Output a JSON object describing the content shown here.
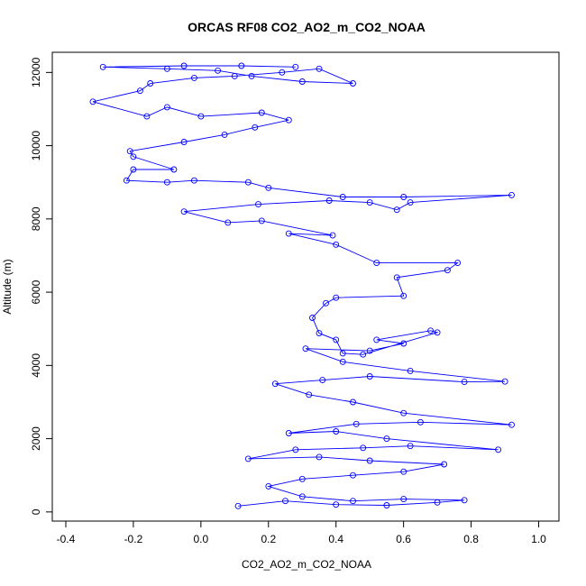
{
  "chart_data": {
    "type": "line",
    "title": "ORCAS RF08 CO2_AO2_m_CO2_NOAA",
    "xlabel": "CO2_AO2_m_CO2_NOAA",
    "ylabel": "Altitude (m)",
    "xlim": [
      -0.44,
      1.06
    ],
    "ylim": [
      -250,
      12550
    ],
    "x_ticks": [
      "-0.4",
      "-0.2",
      "0.0",
      "0.2",
      "0.4",
      "0.6",
      "0.8",
      "1.0"
    ],
    "y_ticks": [
      "0",
      "2000",
      "4000",
      "6000",
      "8000",
      "10000",
      "12000"
    ],
    "grid": false,
    "colors": {
      "series": "#0000ff",
      "axes": "#000000"
    },
    "series": [
      {
        "points": [
          [
            0.11,
            160
          ],
          [
            0.25,
            300
          ],
          [
            0.4,
            200
          ],
          [
            0.55,
            180
          ],
          [
            0.7,
            260
          ],
          [
            0.78,
            320
          ],
          [
            0.6,
            350
          ],
          [
            0.45,
            300
          ],
          [
            0.3,
            420
          ],
          [
            0.2,
            700
          ],
          [
            0.3,
            900
          ],
          [
            0.45,
            1000
          ],
          [
            0.6,
            1100
          ],
          [
            0.72,
            1300
          ],
          [
            0.5,
            1400
          ],
          [
            0.35,
            1500
          ],
          [
            0.14,
            1450
          ],
          [
            0.28,
            1700
          ],
          [
            0.48,
            1750
          ],
          [
            0.62,
            1800
          ],
          [
            0.88,
            1700
          ],
          [
            0.55,
            2000
          ],
          [
            0.4,
            2200
          ],
          [
            0.26,
            2150
          ],
          [
            0.46,
            2400
          ],
          [
            0.65,
            2450
          ],
          [
            0.92,
            2380
          ],
          [
            0.6,
            2700
          ],
          [
            0.45,
            3000
          ],
          [
            0.32,
            3200
          ],
          [
            0.22,
            3500
          ],
          [
            0.36,
            3600
          ],
          [
            0.5,
            3700
          ],
          [
            0.78,
            3550
          ],
          [
            0.9,
            3560
          ],
          [
            0.62,
            3850
          ],
          [
            0.42,
            4100
          ],
          [
            0.31,
            4460
          ],
          [
            0.5,
            4400
          ],
          [
            0.6,
            4600
          ],
          [
            0.52,
            4700
          ],
          [
            0.68,
            4950
          ],
          [
            0.7,
            4900
          ],
          [
            0.48,
            4300
          ],
          [
            0.42,
            4330
          ],
          [
            0.4,
            4700
          ],
          [
            0.35,
            4880
          ],
          [
            0.33,
            5300
          ],
          [
            0.37,
            5700
          ],
          [
            0.4,
            5850
          ],
          [
            0.6,
            5900
          ],
          [
            0.58,
            6400
          ],
          [
            0.73,
            6600
          ],
          [
            0.76,
            6800
          ],
          [
            0.52,
            6800
          ],
          [
            0.4,
            7300
          ],
          [
            0.26,
            7600
          ],
          [
            0.39,
            7550
          ],
          [
            0.18,
            7950
          ],
          [
            0.08,
            7900
          ],
          [
            -0.05,
            8200
          ],
          [
            0.17,
            8400
          ],
          [
            0.38,
            8500
          ],
          [
            0.5,
            8450
          ],
          [
            0.58,
            8250
          ],
          [
            0.62,
            8450
          ],
          [
            0.92,
            8650
          ],
          [
            0.6,
            8600
          ],
          [
            0.42,
            8600
          ],
          [
            0.2,
            8850
          ],
          [
            0.14,
            9000
          ],
          [
            -0.02,
            9050
          ],
          [
            -0.1,
            9000
          ],
          [
            -0.22,
            9050
          ],
          [
            -0.2,
            9350
          ],
          [
            -0.08,
            9350
          ],
          [
            -0.2,
            9700
          ],
          [
            -0.21,
            9850
          ],
          [
            -0.05,
            10100
          ],
          [
            0.07,
            10300
          ],
          [
            0.16,
            10500
          ],
          [
            0.26,
            10700
          ],
          [
            0.18,
            10900
          ],
          [
            0.0,
            10800
          ],
          [
            -0.1,
            11050
          ],
          [
            -0.16,
            10800
          ],
          [
            -0.32,
            11200
          ],
          [
            -0.18,
            11500
          ],
          [
            -0.15,
            11700
          ],
          [
            -0.02,
            11850
          ],
          [
            0.1,
            11900
          ],
          [
            0.24,
            12000
          ],
          [
            0.35,
            12100
          ],
          [
            0.45,
            11700
          ],
          [
            0.3,
            11750
          ],
          [
            0.15,
            11900
          ],
          [
            0.05,
            12050
          ],
          [
            -0.1,
            12100
          ],
          [
            -0.29,
            12150
          ],
          [
            -0.05,
            12180
          ],
          [
            0.12,
            12180
          ],
          [
            0.28,
            12150
          ]
        ]
      }
    ]
  }
}
